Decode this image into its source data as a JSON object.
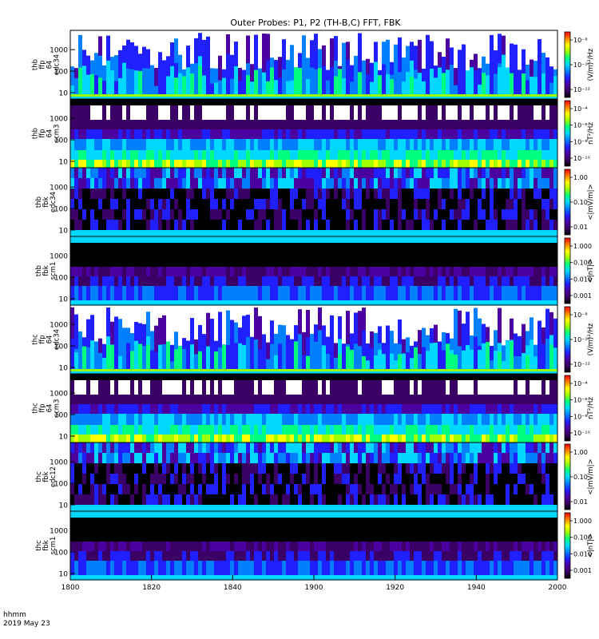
{
  "title": "Outer Probes: P1, P2 (TH-B,C) FFT, FBK",
  "footer": {
    "line1": "hhmm",
    "line2": "2019 May 23"
  },
  "x_axis": {
    "ticks": [
      1800,
      1820,
      1840,
      1900,
      1920,
      1940,
      2000
    ]
  },
  "colors": {
    "colorbar": [
      "#000000",
      "#3b0066",
      "#4b00a0",
      "#2020ff",
      "#0080ff",
      "#00d8ff",
      "#00ff80",
      "#a0ff00",
      "#ffff00",
      "#ff8000",
      "#ff0000"
    ]
  },
  "chart_data": [
    {
      "type": "heatmap",
      "probe": "thb",
      "instrument": "ffp",
      "band": "64",
      "sensor": "edc34",
      "ylabel": [
        "thb",
        "ffp",
        "64",
        "edc34"
      ],
      "ytick_labels": [
        "1000",
        "100",
        "10"
      ],
      "cbar_label": "(V/m)²/Hz",
      "cbar_tick_labels": [
        "10⁻⁸",
        "10⁻¹⁰",
        "10⁻¹²"
      ],
      "texture": "bursty"
    },
    {
      "type": "heatmap",
      "probe": "thb",
      "instrument": "ffp",
      "band": "64",
      "sensor": "scm3",
      "ylabel": [
        "thb",
        "ffp",
        "64",
        "scm3"
      ],
      "ytick_labels": [
        "1000",
        "100",
        "10"
      ],
      "cbar_label": "nT²/Hz",
      "cbar_tick_labels": [
        "10⁻⁴",
        "10⁻⁶",
        "10⁻⁸",
        "10⁻¹⁰"
      ],
      "texture": "scm"
    },
    {
      "type": "heatmap",
      "probe": "thb",
      "instrument": "fbk",
      "sensor": "edc34",
      "ylabel": [
        "thb",
        "fbk",
        "edc34"
      ],
      "ytick_labels": [
        "1000",
        "100",
        "10"
      ],
      "cbar_label": "<|mV/m|>",
      "cbar_tick_labels": [
        "1.00",
        "0.10",
        "0.01"
      ],
      "texture": "fbk_e"
    },
    {
      "type": "heatmap",
      "probe": "thb",
      "instrument": "fbk",
      "sensor": "scm1",
      "ylabel": [
        "thb",
        "fbk",
        "scm1"
      ],
      "ytick_labels": [
        "1000",
        "100",
        "10"
      ],
      "cbar_label": "<|nT|>",
      "cbar_tick_labels": [
        "1.000",
        "0.100",
        "0.010",
        "0.001"
      ],
      "texture": "fbk_b"
    },
    {
      "type": "heatmap",
      "probe": "thc",
      "instrument": "ffp",
      "band": "64",
      "sensor": "edc34",
      "ylabel": [
        "thc",
        "ffp",
        "64",
        "edc34"
      ],
      "ytick_labels": [
        "1000",
        "100",
        "10"
      ],
      "cbar_label": "(V/m)²/Hz",
      "cbar_tick_labels": [
        "10⁻⁸",
        "10⁻¹⁰",
        "10⁻¹²"
      ],
      "texture": "bursty"
    },
    {
      "type": "heatmap",
      "probe": "thc",
      "instrument": "ffp",
      "band": "64",
      "sensor": "scm3",
      "ylabel": [
        "thc",
        "ffp",
        "64",
        "scm3"
      ],
      "ytick_labels": [
        "1000",
        "100",
        "10"
      ],
      "cbar_label": "nT²/Hz",
      "cbar_tick_labels": [
        "10⁻⁴",
        "10⁻⁶",
        "10⁻⁸",
        "10⁻¹⁰"
      ],
      "texture": "scm"
    },
    {
      "type": "heatmap",
      "probe": "thc",
      "instrument": "fbk",
      "sensor": "edc12",
      "ylabel": [
        "thc",
        "fbk",
        "edc12"
      ],
      "ytick_labels": [
        "1000",
        "100",
        "10"
      ],
      "cbar_label": "<|mV/m|>",
      "cbar_tick_labels": [
        "1.00",
        "0.10",
        "0.01"
      ],
      "texture": "fbk_e"
    },
    {
      "type": "heatmap",
      "probe": "thc",
      "instrument": "fbk",
      "sensor": "scm1",
      "ylabel": [
        "thc",
        "fbk",
        "scm1"
      ],
      "ytick_labels": [
        "1000",
        "100",
        "10"
      ],
      "cbar_label": "<|nT|>",
      "cbar_tick_labels": [
        "1.000",
        "0.100",
        "0.010",
        "0.001"
      ],
      "texture": "fbk_b"
    }
  ]
}
